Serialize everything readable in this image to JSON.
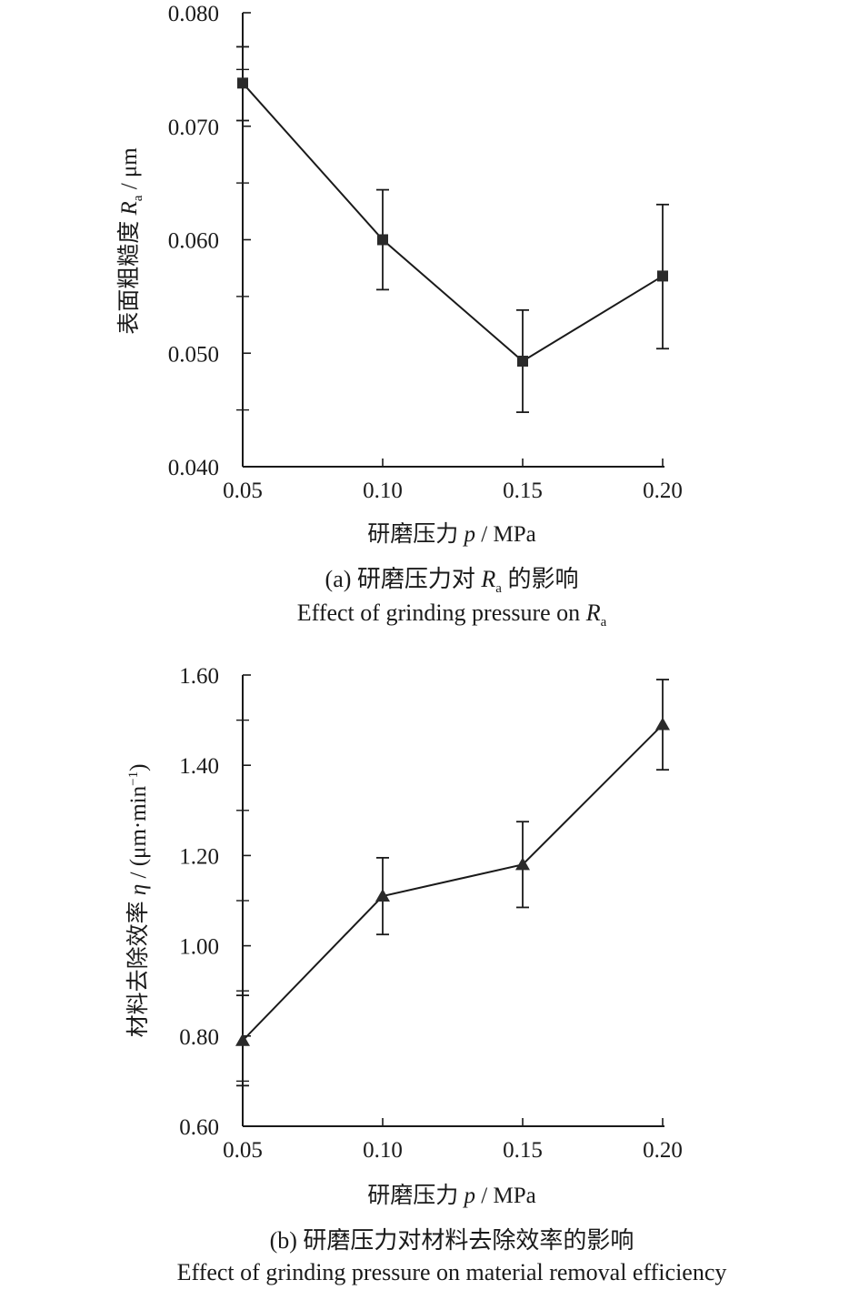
{
  "figure": {
    "panel_a": {
      "caption_line1_prefix": "(a) 研磨压力对 ",
      "caption_line1_symbol": "R",
      "caption_line1_symbol_sub": "a",
      "caption_line1_suffix": " 的影响",
      "caption_line2_prefix": "Effect of grinding pressure on ",
      "caption_line2_symbol": "R",
      "caption_line2_symbol_sub": "a"
    },
    "panel_b": {
      "caption_line1": "(b) 研磨压力对材料去除效率的影响",
      "caption_line2": "Effect of grinding pressure on material removal efficiency"
    }
  },
  "chart_data": [
    {
      "type": "line",
      "marker": "square",
      "x": [
        0.05,
        0.1,
        0.15,
        0.2
      ],
      "x_tick_labels": [
        "0.05",
        "0.10",
        "0.15",
        "0.20"
      ],
      "y": [
        0.0738,
        0.06,
        0.0493,
        0.0568
      ],
      "error_upper": [
        0.077,
        0.0644,
        0.0538,
        0.0631
      ],
      "error_lower": [
        0.0705,
        0.0556,
        0.0448,
        0.0504
      ],
      "xlim": [
        0.05,
        0.2
      ],
      "ylim": [
        0.04,
        0.08
      ],
      "y_ticks": [
        0.04,
        0.05,
        0.06,
        0.07,
        0.08
      ],
      "y_tick_labels": [
        "0.040",
        "0.050",
        "0.060",
        "0.070",
        "0.080"
      ],
      "xlabel_prefix": "研磨压力 ",
      "xlabel_symbol": "p",
      "xlabel_suffix": " / MPa",
      "ylabel_prefix": "表面粗糙度 ",
      "ylabel_symbol": "R",
      "ylabel_symbol_sub": "a",
      "ylabel_suffix": " / μm",
      "grid": false
    },
    {
      "type": "line",
      "marker": "triangle",
      "x": [
        0.05,
        0.1,
        0.15,
        0.2
      ],
      "x_tick_labels": [
        "0.05",
        "0.10",
        "0.15",
        "0.20"
      ],
      "y": [
        0.79,
        1.11,
        1.18,
        1.49
      ],
      "error_upper": [
        0.89,
        1.195,
        1.275,
        1.59
      ],
      "error_lower": [
        0.69,
        1.025,
        1.085,
        1.39
      ],
      "xlim": [
        0.05,
        0.2
      ],
      "ylim": [
        0.6,
        1.6
      ],
      "y_ticks": [
        0.6,
        0.8,
        1.0,
        1.2,
        1.4,
        1.6
      ],
      "y_tick_labels": [
        "0.60",
        "0.80",
        "1.00",
        "1.20",
        "1.40",
        "1.60"
      ],
      "xlabel_prefix": "研磨压力 ",
      "xlabel_symbol": "p",
      "xlabel_suffix": " / MPa",
      "ylabel_prefix": "材料去除效率 ",
      "ylabel_symbol": "η",
      "ylabel_suffix": " / (μm·min",
      "ylabel_sup": "−1",
      "ylabel_close": ")",
      "grid": false
    }
  ]
}
